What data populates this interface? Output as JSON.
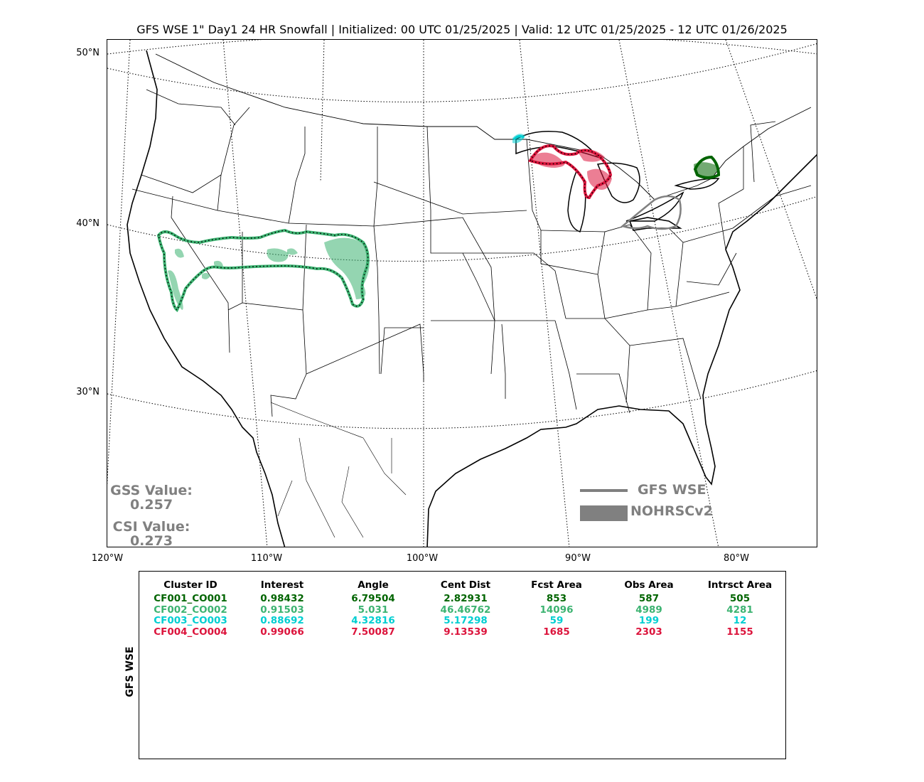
{
  "title": "GFS WSE 1\" Day1 24 HR Snowfall | Initialized: 00 UTC 01/25/2025 | Valid: 12 UTC 01/25/2025 - 12 UTC 01/26/2025",
  "lat_labels": [
    "50°N",
    "40°N",
    "30°N"
  ],
  "lon_labels": [
    "120°W",
    "110°W",
    "100°W",
    "90°W",
    "80°W"
  ],
  "scores": {
    "gss_label": "GSS Value:",
    "gss_value": "0.257",
    "csi_label": "CSI Value:",
    "csi_value": "0.273"
  },
  "legend": {
    "line_label": "GFS WSE",
    "fill_label": "NOHRSCv2",
    "color": "#808080"
  },
  "table": {
    "side_label": "GFS WSE",
    "headers": [
      "Cluster ID",
      "Interest",
      "Angle",
      "Cent Dist",
      "Fcst Area",
      "Obs Area",
      "Intrsct Area"
    ],
    "rows": [
      {
        "color": "#006400",
        "cells": [
          "CF001_CO001",
          "0.98432",
          "6.79504",
          "2.82931",
          "853",
          "587",
          "505"
        ]
      },
      {
        "color": "#3cb371",
        "cells": [
          "CF002_CO002",
          "0.91503",
          "5.031",
          "46.46762",
          "14096",
          "4989",
          "4281"
        ]
      },
      {
        "color": "#00ced1",
        "cells": [
          "CF003_CO003",
          "0.88692",
          "4.32816",
          "5.17298",
          "59",
          "199",
          "12"
        ]
      },
      {
        "color": "#dc143c",
        "cells": [
          "CF004_CO004",
          "0.99066",
          "7.50087",
          "9.13539",
          "1685",
          "2303",
          "1155"
        ]
      }
    ]
  },
  "clusters": [
    {
      "id": "CF001_CO001",
      "color": "#006400",
      "region": "Lake Ontario / New York"
    },
    {
      "id": "CF002_CO002",
      "color": "#3cb371",
      "region": "Nevada to Colorado"
    },
    {
      "id": "CF003_CO003",
      "color": "#00ced1",
      "region": "Lake Superior west shore"
    },
    {
      "id": "CF004_CO004",
      "color": "#dc143c",
      "region": "Upper Michigan"
    }
  ],
  "unmatched_forecast": {
    "color": "#808080",
    "region": "Lake Erie"
  }
}
